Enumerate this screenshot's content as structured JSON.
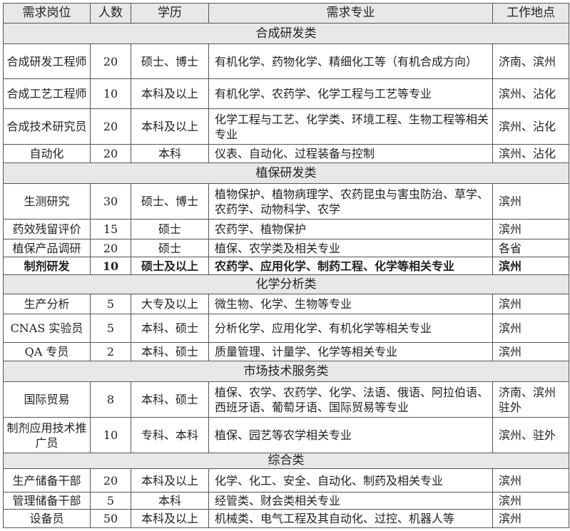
{
  "headers": [
    "需求岗位",
    "人数",
    "学历",
    "需求专业",
    "工作地点"
  ],
  "sections": [
    {
      "category": "合成研发类",
      "rows": [
        {
          "position": "合成研发工程师",
          "count": "20",
          "education": "硕士、博士",
          "major": "有机化学、药物化学、精细化工等（有机合成方向）",
          "location": "济南、滨州",
          "h": 49
        },
        {
          "position": "合成工艺工程师",
          "count": "10",
          "education": "本科及以上",
          "major": "有机化学、农药学、化学工程与工艺等专业",
          "location": "滨州、沾化",
          "h": 42
        },
        {
          "position": "合成技术研究员",
          "count": "20",
          "education": "本科及以上",
          "major": "化学工程与工艺、化学类、环境工程、生物工程等相关专业",
          "location": "滨州、沾化",
          "h": 50
        },
        {
          "position": "自动化",
          "count": "20",
          "education": "本科",
          "major": "仪表、自动化、过程装备与控制",
          "location": "滨州、沾化",
          "h": 26
        }
      ]
    },
    {
      "category": "植保研发类",
      "rows": [
        {
          "position": "生测研究",
          "count": "30",
          "education": "硕士、博士",
          "major": "植物保护、植物病理学、农药昆虫与害虫防治、草学、农药学、动物科学、农学",
          "location": "滨州",
          "h": 50
        },
        {
          "position": "药效残留评价",
          "count": "15",
          "education": "硕士",
          "major": "农药学、植物保护",
          "location": "滨州",
          "h": 28
        },
        {
          "position": "植保产品调研",
          "count": "20",
          "education": "硕士",
          "major": "植保、农学类及相关专业",
          "location": "各省",
          "h": 25
        },
        {
          "position": "制剂研发",
          "count": "10",
          "education": "硕士及以上",
          "major": "农药学、应用化学、制药工程、化学等相关专业",
          "location": "滨州",
          "h": 25,
          "bold": true
        }
      ]
    },
    {
      "category": "化学分析类",
      "rows": [
        {
          "position": "生产分析",
          "count": "5",
          "education": "大专及以上",
          "major": "微生物、化学、生物等专业",
          "location": "滨州",
          "h": 28
        },
        {
          "position": "CNAS 实验员",
          "count": "5",
          "education": "本科、硕士",
          "major": "分析化学、应用化学、有机化学等相关专业",
          "location": "滨州",
          "h": 40
        },
        {
          "position": "QA 专员",
          "count": "2",
          "education": "本科、硕士",
          "major": "质量管理、计量学、化学等相关专业",
          "location": "滨州",
          "h": 26
        }
      ]
    },
    {
      "category": "市场技术服务类",
      "rows": [
        {
          "position": "国际贸易",
          "count": "8",
          "education": "本科、硕士",
          "major": "植保、农学、农药学、化学、法语、俄语、阿拉伯语、西班牙语、葡萄牙语、国际贸易等专业",
          "location": "济南、滨州驻外",
          "h": 50
        },
        {
          "position": "制剂应用技术推广员",
          "count": "10",
          "education": "专科、本科",
          "major": "植保、园艺等农学相关专业",
          "location": "滨州、驻外",
          "h": 50
        }
      ]
    },
    {
      "category": "综合类",
      "rows": [
        {
          "position": "生产储备干部",
          "count": "20",
          "education": "本科及以上",
          "major": "化学、化工、安全、自动化、制药及相关专业",
          "location": "滨州",
          "h": 33
        },
        {
          "position": "管理储备干部",
          "count": "5",
          "education": "本科",
          "major": "经管类、财会类相关专业",
          "location": "滨州",
          "h": 24
        },
        {
          "position": "设备员",
          "count": "50",
          "education": "本科及以上",
          "major": "机械类、电气工程及其自动化、过控、机器人等",
          "location": "滨州",
          "h": 26
        }
      ]
    }
  ]
}
